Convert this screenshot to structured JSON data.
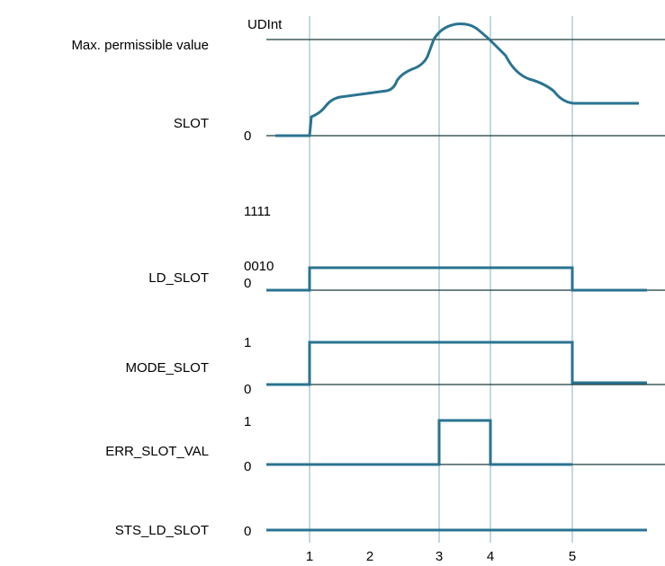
{
  "slot": {
    "unit": "UDInt",
    "max_label": "Max. permissible value",
    "name": "SLOT",
    "zero": "0"
  },
  "ld_slot": {
    "name": "LD_SLOT",
    "levels": [
      "1111",
      "0010",
      "0"
    ]
  },
  "mode_slot": {
    "name": "MODE_SLOT",
    "levels": [
      "1",
      "0"
    ]
  },
  "err_slot_val": {
    "name": "ERR_SLOT_VAL",
    "levels": [
      "1",
      "0"
    ]
  },
  "sts_ld_slot": {
    "name": "STS_LD_SLOT",
    "levels": [
      "0"
    ]
  },
  "time_points": [
    "1",
    "2",
    "3",
    "4",
    "5"
  ]
}
